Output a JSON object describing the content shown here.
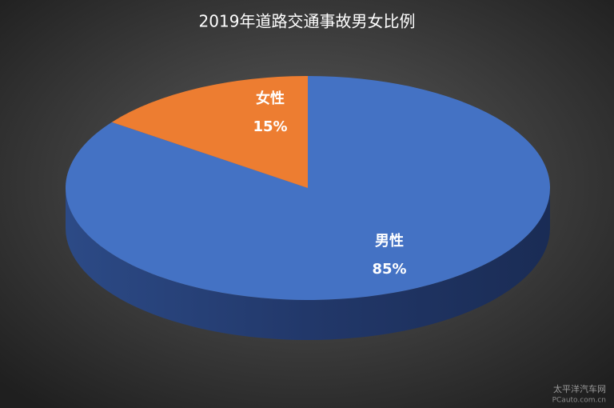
{
  "chart_data": {
    "type": "pie",
    "title": "2019年道路交通事故男女比例",
    "categories": [
      "男性",
      "女性"
    ],
    "values": [
      85,
      15
    ],
    "value_labels": [
      "85%",
      "15%"
    ],
    "colors": [
      "#4472c4",
      "#ed7d31"
    ]
  },
  "watermark": {
    "name": "太平洋汽车网",
    "site": "PCauto.com.cn"
  }
}
